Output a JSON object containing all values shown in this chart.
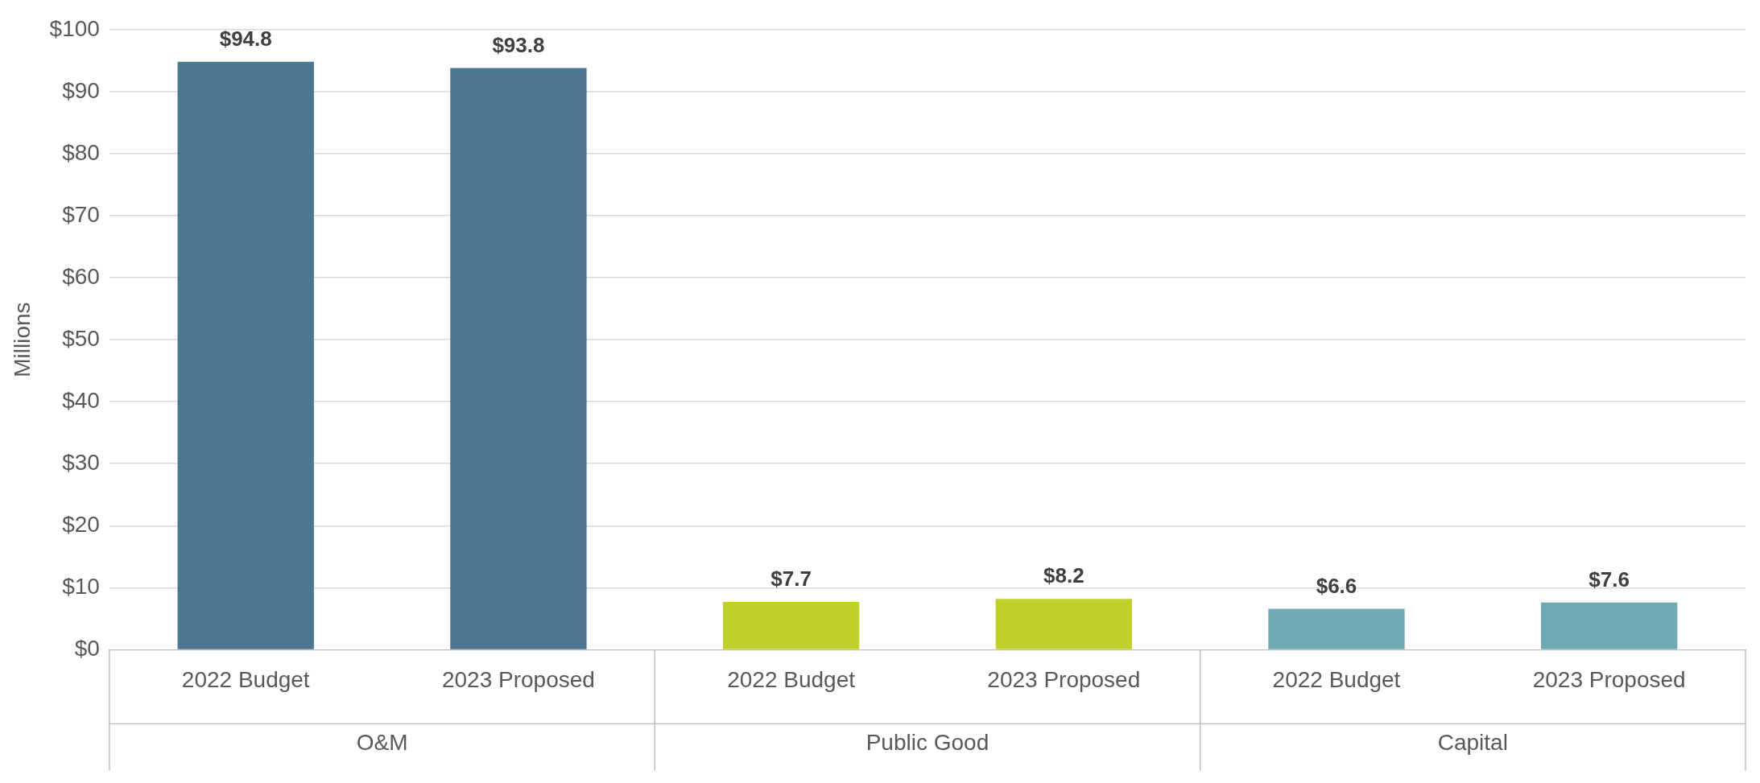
{
  "chart_data": {
    "type": "bar",
    "ylabel": "Millions",
    "categories": [
      "2022 Budget",
      "2023 Proposed",
      "2022 Budget",
      "2023 Proposed",
      "2022 Budget",
      "2023 Proposed"
    ],
    "values": [
      94.8,
      93.8,
      7.7,
      8.2,
      6.6,
      7.6
    ],
    "colors": [
      "#4e7690",
      "#4e7690",
      "#c0d22a",
      "#c0d22a",
      "#6faab4",
      "#6faab4"
    ],
    "value_labels": [
      "$94.8",
      "$93.8",
      "$7.7",
      "$8.2",
      "$6.6",
      "$7.6"
    ],
    "annotations": [
      "O&M",
      "Public Good",
      "Capital"
    ],
    "ylim": [
      0,
      100
    ],
    "yticks": [
      {
        "value": 0,
        "label": "$0"
      },
      {
        "value": 10,
        "label": "$10"
      },
      {
        "value": 20,
        "label": "$20"
      },
      {
        "value": 30,
        "label": "$30"
      },
      {
        "value": 40,
        "label": "$40"
      },
      {
        "value": 50,
        "label": "$50"
      },
      {
        "value": 60,
        "label": "$60"
      },
      {
        "value": 70,
        "label": "$70"
      },
      {
        "value": 80,
        "label": "$80"
      },
      {
        "value": 90,
        "label": "$90"
      },
      {
        "value": 100,
        "label": "$100"
      }
    ],
    "grid": "y",
    "legend": false
  }
}
